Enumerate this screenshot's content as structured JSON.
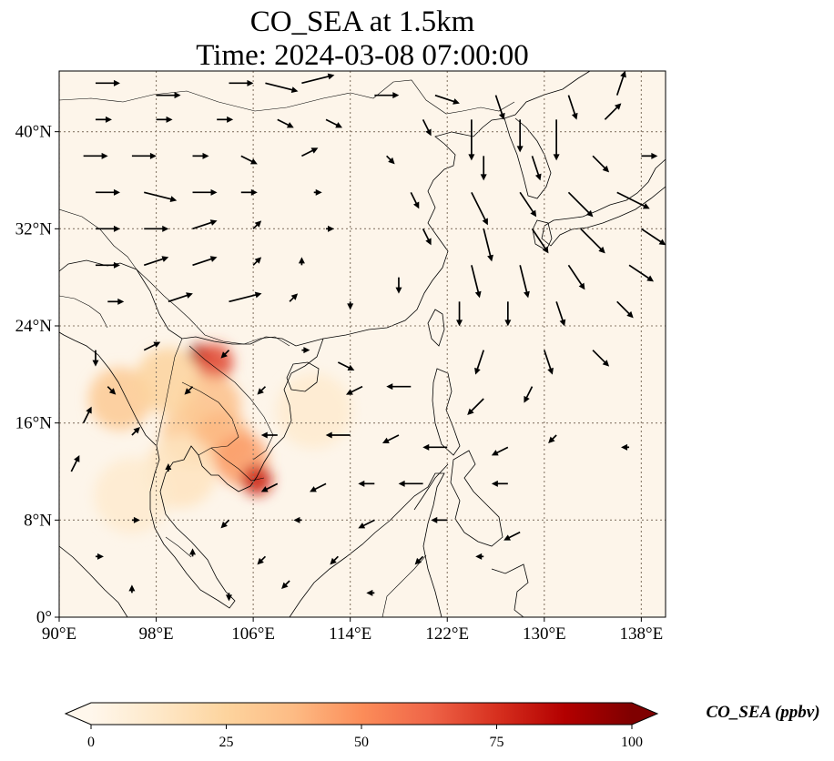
{
  "title": {
    "line1": "CO_SEA at 1.5km",
    "line2": "Time: 2024-03-08 07:00:00"
  },
  "map": {
    "lon_range": [
      90,
      140
    ],
    "lat_range": [
      0,
      45
    ],
    "background_color": "#fdf5ea",
    "gridlines": true,
    "lon_ticks": [
      {
        "value": 90,
        "label": "90°E"
      },
      {
        "value": 98,
        "label": "98°E"
      },
      {
        "value": 106,
        "label": "106°E"
      },
      {
        "value": 114,
        "label": "114°E"
      },
      {
        "value": 122,
        "label": "122°E"
      },
      {
        "value": 130,
        "label": "130°E"
      },
      {
        "value": 138,
        "label": "138°E"
      }
    ],
    "lat_ticks": [
      {
        "value": 0,
        "label": "0°"
      },
      {
        "value": 8,
        "label": "8°N"
      },
      {
        "value": 16,
        "label": "16°N"
      },
      {
        "value": 24,
        "label": "24°N"
      },
      {
        "value": 32,
        "label": "32°N"
      },
      {
        "value": 40,
        "label": "40°N"
      }
    ]
  },
  "colorbar": {
    "label": "CO_SEA (ppbv)",
    "min": 0,
    "max": 100,
    "extend": "both",
    "colormap": "OrRd",
    "stops": [
      "#fff7ec",
      "#fee8c8",
      "#fdd49e",
      "#fdbb84",
      "#fc8d59",
      "#ef6548",
      "#d7301f",
      "#b30000",
      "#7f0000"
    ],
    "ticks": [
      {
        "value": 0,
        "label": "0"
      },
      {
        "value": 25,
        "label": "25"
      },
      {
        "value": 50,
        "label": "50"
      },
      {
        "value": 75,
        "label": "75"
      },
      {
        "value": 100,
        "label": "100"
      }
    ]
  },
  "hotspots": [
    {
      "lon": 101.5,
      "lat": 21.6,
      "value": 95
    },
    {
      "lon": 102.8,
      "lat": 21.0,
      "value": 70
    },
    {
      "lon": 102.5,
      "lat": 17.5,
      "value": 35
    },
    {
      "lon": 101.0,
      "lat": 15.0,
      "value": 30
    },
    {
      "lon": 103.5,
      "lat": 14.5,
      "value": 38
    },
    {
      "lon": 105.0,
      "lat": 13.0,
      "value": 45
    },
    {
      "lon": 106.3,
      "lat": 11.3,
      "value": 80
    },
    {
      "lon": 95.0,
      "lat": 18.0,
      "value": 30
    },
    {
      "lon": 99.0,
      "lat": 19.5,
      "value": 25
    },
    {
      "lon": 100.0,
      "lat": 12.0,
      "value": 15
    },
    {
      "lon": 111.0,
      "lat": 17.0,
      "value": 10
    },
    {
      "lon": 96.0,
      "lat": 10.0,
      "value": 10
    }
  ],
  "wind_vectors": [
    {
      "lon": 93,
      "lat": 44,
      "u": 3,
      "v": 0
    },
    {
      "lon": 98,
      "lat": 43,
      "u": 3,
      "v": 0
    },
    {
      "lon": 104,
      "lat": 44,
      "u": 3,
      "v": 0
    },
    {
      "lon": 107,
      "lat": 44,
      "u": 4,
      "v": -1
    },
    {
      "lon": 110,
      "lat": 44,
      "u": 4,
      "v": 1
    },
    {
      "lon": 116,
      "lat": 43,
      "u": 3,
      "v": 0
    },
    {
      "lon": 121,
      "lat": 43,
      "u": 3,
      "v": -1
    },
    {
      "lon": 126,
      "lat": 43,
      "u": 1,
      "v": -3
    },
    {
      "lon": 132,
      "lat": 43,
      "u": 1,
      "v": -3
    },
    {
      "lon": 136,
      "lat": 43,
      "u": 1,
      "v": 3
    },
    {
      "lon": 93,
      "lat": 41,
      "u": 2,
      "v": 0
    },
    {
      "lon": 98,
      "lat": 41,
      "u": 2,
      "v": 0
    },
    {
      "lon": 103,
      "lat": 41,
      "u": 2,
      "v": 0
    },
    {
      "lon": 108,
      "lat": 41,
      "u": 2,
      "v": -1
    },
    {
      "lon": 112,
      "lat": 41,
      "u": 2,
      "v": -1
    },
    {
      "lon": 120,
      "lat": 41,
      "u": 1,
      "v": -2
    },
    {
      "lon": 124,
      "lat": 41,
      "u": 0,
      "v": -5
    },
    {
      "lon": 128,
      "lat": 41,
      "u": 0,
      "v": -4
    },
    {
      "lon": 131,
      "lat": 41,
      "u": 0,
      "v": -5
    },
    {
      "lon": 135,
      "lat": 41,
      "u": 2,
      "v": 2
    },
    {
      "lon": 92,
      "lat": 38,
      "u": 3,
      "v": 0
    },
    {
      "lon": 96,
      "lat": 38,
      "u": 3,
      "v": 0
    },
    {
      "lon": 101,
      "lat": 38,
      "u": 2,
      "v": 0
    },
    {
      "lon": 105,
      "lat": 38,
      "u": 2,
      "v": -1
    },
    {
      "lon": 110,
      "lat": 38,
      "u": 2,
      "v": 1
    },
    {
      "lon": 117,
      "lat": 38,
      "u": 1,
      "v": -1
    },
    {
      "lon": 125,
      "lat": 38,
      "u": 0,
      "v": -3
    },
    {
      "lon": 129,
      "lat": 38,
      "u": 1,
      "v": -3
    },
    {
      "lon": 134,
      "lat": 38,
      "u": 2,
      "v": -2
    },
    {
      "lon": 138,
      "lat": 38,
      "u": 2,
      "v": 0
    },
    {
      "lon": 93,
      "lat": 35,
      "u": 3,
      "v": 0
    },
    {
      "lon": 97,
      "lat": 35,
      "u": 4,
      "v": -1
    },
    {
      "lon": 101,
      "lat": 35,
      "u": 3,
      "v": 0
    },
    {
      "lon": 105,
      "lat": 35,
      "u": 2,
      "v": 0
    },
    {
      "lon": 111,
      "lat": 35,
      "u": 1,
      "v": 0
    },
    {
      "lon": 119,
      "lat": 35,
      "u": 1,
      "v": -2
    },
    {
      "lon": 124,
      "lat": 35,
      "u": 2,
      "v": -4
    },
    {
      "lon": 128,
      "lat": 35,
      "u": 2,
      "v": -3
    },
    {
      "lon": 132,
      "lat": 35,
      "u": 3,
      "v": -3
    },
    {
      "lon": 136,
      "lat": 35,
      "u": 4,
      "v": -2
    },
    {
      "lon": 93,
      "lat": 32,
      "u": 3,
      "v": 0
    },
    {
      "lon": 97,
      "lat": 32,
      "u": 3,
      "v": 0
    },
    {
      "lon": 101,
      "lat": 32,
      "u": 3,
      "v": 1
    },
    {
      "lon": 106,
      "lat": 32,
      "u": 1,
      "v": 1
    },
    {
      "lon": 112,
      "lat": 32,
      "u": 1,
      "v": 0
    },
    {
      "lon": 120,
      "lat": 32,
      "u": 1,
      "v": -2
    },
    {
      "lon": 125,
      "lat": 32,
      "u": 1,
      "v": -4
    },
    {
      "lon": 129,
      "lat": 32,
      "u": 2,
      "v": -3
    },
    {
      "lon": 133,
      "lat": 32,
      "u": 3,
      "v": -3
    },
    {
      "lon": 138,
      "lat": 32,
      "u": 3,
      "v": -2
    },
    {
      "lon": 93,
      "lat": 29,
      "u": 3,
      "v": 0
    },
    {
      "lon": 97,
      "lat": 29,
      "u": 3,
      "v": 1
    },
    {
      "lon": 101,
      "lat": 29,
      "u": 3,
      "v": 1
    },
    {
      "lon": 106,
      "lat": 29,
      "u": 1,
      "v": 1
    },
    {
      "lon": 110,
      "lat": 29,
      "u": 0,
      "v": 1
    },
    {
      "lon": 118,
      "lat": 28,
      "u": 0,
      "v": -2
    },
    {
      "lon": 124,
      "lat": 29,
      "u": 1,
      "v": -4
    },
    {
      "lon": 128,
      "lat": 29,
      "u": 1,
      "v": -4
    },
    {
      "lon": 132,
      "lat": 29,
      "u": 2,
      "v": -3
    },
    {
      "lon": 137,
      "lat": 29,
      "u": 3,
      "v": -2
    },
    {
      "lon": 94,
      "lat": 26,
      "u": 2,
      "v": 0
    },
    {
      "lon": 99,
      "lat": 26,
      "u": 3,
      "v": 1
    },
    {
      "lon": 104,
      "lat": 26,
      "u": 4,
      "v": 1
    },
    {
      "lon": 109,
      "lat": 26,
      "u": 1,
      "v": 1
    },
    {
      "lon": 114,
      "lat": 26,
      "u": 0,
      "v": -1
    },
    {
      "lon": 123,
      "lat": 26,
      "u": 0,
      "v": -3
    },
    {
      "lon": 127,
      "lat": 26,
      "u": 0,
      "v": -3
    },
    {
      "lon": 131,
      "lat": 26,
      "u": 1,
      "v": -3
    },
    {
      "lon": 136,
      "lat": 26,
      "u": 2,
      "v": -2
    },
    {
      "lon": 93,
      "lat": 22,
      "u": 0,
      "v": -2
    },
    {
      "lon": 97,
      "lat": 22,
      "u": 2,
      "v": 1
    },
    {
      "lon": 104,
      "lat": 22,
      "u": -1,
      "v": -1
    },
    {
      "lon": 110,
      "lat": 22,
      "u": 1,
      "v": 0
    },
    {
      "lon": 113,
      "lat": 21,
      "u": 2,
      "v": -1
    },
    {
      "lon": 125,
      "lat": 22,
      "u": -1,
      "v": -3
    },
    {
      "lon": 130,
      "lat": 22,
      "u": 1,
      "v": -3
    },
    {
      "lon": 134,
      "lat": 22,
      "u": 2,
      "v": -2
    },
    {
      "lon": 94,
      "lat": 19,
      "u": 1,
      "v": -1
    },
    {
      "lon": 101,
      "lat": 19,
      "u": -1,
      "v": -1
    },
    {
      "lon": 107,
      "lat": 19,
      "u": -1,
      "v": -1
    },
    {
      "lon": 115,
      "lat": 19,
      "u": -2,
      "v": -1
    },
    {
      "lon": 119,
      "lat": 19,
      "u": -3,
      "v": 0
    },
    {
      "lon": 125,
      "lat": 18,
      "u": -2,
      "v": -2
    },
    {
      "lon": 129,
      "lat": 19,
      "u": -1,
      "v": -2
    },
    {
      "lon": 92,
      "lat": 16,
      "u": 1,
      "v": 2
    },
    {
      "lon": 96,
      "lat": 15,
      "u": 1,
      "v": 1
    },
    {
      "lon": 108,
      "lat": 15,
      "u": -2,
      "v": 0
    },
    {
      "lon": 114,
      "lat": 15,
      "u": -3,
      "v": 0
    },
    {
      "lon": 118,
      "lat": 15,
      "u": -2,
      "v": -1
    },
    {
      "lon": 122,
      "lat": 14,
      "u": -3,
      "v": 0
    },
    {
      "lon": 127,
      "lat": 14,
      "u": -2,
      "v": -1
    },
    {
      "lon": 131,
      "lat": 15,
      "u": -1,
      "v": -1
    },
    {
      "lon": 137,
      "lat": 14,
      "u": -1,
      "v": 0
    },
    {
      "lon": 91,
      "lat": 12,
      "u": 1,
      "v": 2
    },
    {
      "lon": 99,
      "lat": 12,
      "u": 0,
      "v": 1
    },
    {
      "lon": 108,
      "lat": 11,
      "u": -2,
      "v": -1
    },
    {
      "lon": 112,
      "lat": 11,
      "u": -2,
      "v": -1
    },
    {
      "lon": 116,
      "lat": 11,
      "u": -2,
      "v": 0
    },
    {
      "lon": 120,
      "lat": 11,
      "u": -3,
      "v": 0
    },
    {
      "lon": 127,
      "lat": 11,
      "u": -2,
      "v": 0
    },
    {
      "lon": 96,
      "lat": 8,
      "u": 1,
      "v": 0
    },
    {
      "lon": 104,
      "lat": 8,
      "u": -1,
      "v": -1
    },
    {
      "lon": 110,
      "lat": 8,
      "u": -1,
      "v": 0
    },
    {
      "lon": 116,
      "lat": 8,
      "u": -2,
      "v": -1
    },
    {
      "lon": 122,
      "lat": 8,
      "u": -2,
      "v": 0
    },
    {
      "lon": 128,
      "lat": 7,
      "u": -2,
      "v": -1
    },
    {
      "lon": 93,
      "lat": 5,
      "u": 1,
      "v": 0
    },
    {
      "lon": 101,
      "lat": 5,
      "u": 0,
      "v": 1
    },
    {
      "lon": 107,
      "lat": 5,
      "u": -1,
      "v": -1
    },
    {
      "lon": 113,
      "lat": 5,
      "u": -1,
      "v": -1
    },
    {
      "lon": 120,
      "lat": 5,
      "u": -1,
      "v": -1
    },
    {
      "lon": 125,
      "lat": 5,
      "u": -1,
      "v": 0
    },
    {
      "lon": 96,
      "lat": 2,
      "u": 0,
      "v": 1
    },
    {
      "lon": 104,
      "lat": 2,
      "u": 0,
      "v": -1
    },
    {
      "lon": 109,
      "lat": 3,
      "u": -1,
      "v": -1
    },
    {
      "lon": 116,
      "lat": 2,
      "u": -1,
      "v": 0
    }
  ]
}
